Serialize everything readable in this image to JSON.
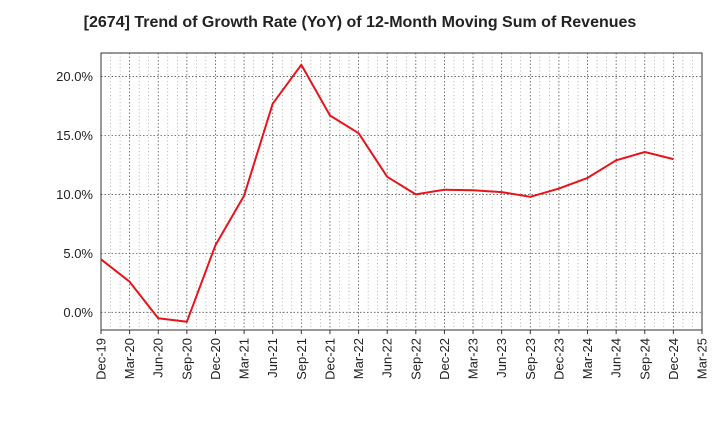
{
  "chart_data": {
    "type": "line",
    "title": "[2674]  Trend of Growth Rate (YoY) of 12-Month Moving Sum of Revenues",
    "xlabel": "",
    "ylabel": "",
    "x_tick_labels": [
      "Dec-19",
      "Mar-20",
      "Jun-20",
      "Sep-20",
      "Dec-20",
      "Mar-21",
      "Jun-21",
      "Sep-21",
      "Dec-21",
      "Mar-22",
      "Jun-22",
      "Sep-22",
      "Dec-22",
      "Mar-23",
      "Jun-23",
      "Sep-23",
      "Dec-23",
      "Mar-24",
      "Jun-24",
      "Sep-24",
      "Dec-24",
      "Mar-25"
    ],
    "y_tick_values": [
      0,
      5,
      10,
      15,
      20
    ],
    "y_tick_labels": [
      "0.0%",
      "5.0%",
      "10.0%",
      "15.0%",
      "20.0%"
    ],
    "ylim": [
      -1.5,
      22.0
    ],
    "grid": true,
    "series": [
      {
        "color": "#e8141c",
        "x": [
          "Dec-19",
          "Mar-20",
          "Jun-20",
          "Sep-20",
          "Dec-20",
          "Mar-21",
          "Jun-21",
          "Sep-21",
          "Dec-21",
          "Mar-22",
          "Jun-22",
          "Sep-22",
          "Dec-22",
          "Mar-23",
          "Jun-23",
          "Sep-23",
          "Dec-23",
          "Mar-24",
          "Jun-24",
          "Sep-24",
          "Dec-24"
        ],
        "values": [
          4.5,
          2.6,
          -0.5,
          -0.8,
          5.7,
          9.9,
          17.7,
          21.0,
          16.7,
          15.2,
          11.5,
          10.0,
          10.4,
          10.35,
          10.2,
          9.8,
          10.5,
          11.4,
          12.9,
          13.6,
          13.0
        ]
      }
    ]
  }
}
